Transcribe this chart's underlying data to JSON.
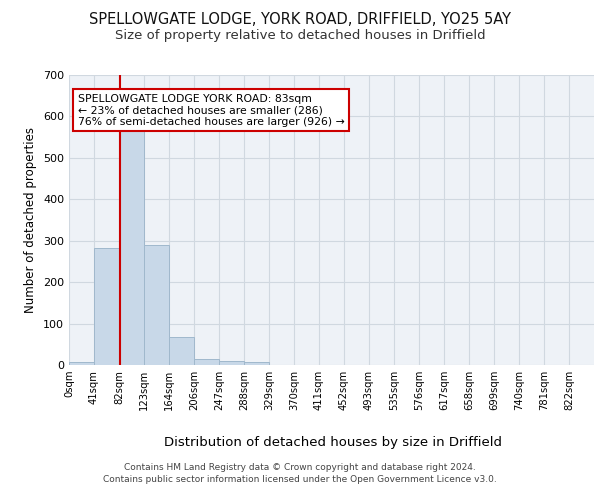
{
  "title1": "SPELLOWGATE LODGE, YORK ROAD, DRIFFIELD, YO25 5AY",
  "title2": "Size of property relative to detached houses in Driffield",
  "xlabel": "Distribution of detached houses by size in Driffield",
  "ylabel": "Number of detached properties",
  "footer1": "Contains HM Land Registry data © Crown copyright and database right 2024.",
  "footer2": "Contains public sector information licensed under the Open Government Licence v3.0.",
  "bin_labels": [
    "0sqm",
    "41sqm",
    "82sqm",
    "123sqm",
    "164sqm",
    "206sqm",
    "247sqm",
    "288sqm",
    "329sqm",
    "370sqm",
    "411sqm",
    "452sqm",
    "493sqm",
    "535sqm",
    "576sqm",
    "617sqm",
    "658sqm",
    "699sqm",
    "740sqm",
    "781sqm",
    "822sqm"
  ],
  "bar_values": [
    8,
    283,
    565,
    290,
    68,
    15,
    10,
    8,
    0,
    0,
    0,
    0,
    0,
    0,
    0,
    0,
    0,
    0,
    0,
    0,
    0
  ],
  "bar_color": "#c8d8e8",
  "bar_edgecolor": "#a0b8cc",
  "vline_color": "#cc0000",
  "annotation_text": "SPELLOWGATE LODGE YORK ROAD: 83sqm\n← 23% of detached houses are smaller (286)\n76% of semi-detached houses are larger (926) →",
  "annotation_box_edgecolor": "#cc0000",
  "ylim": [
    0,
    700
  ],
  "yticks": [
    0,
    100,
    200,
    300,
    400,
    500,
    600,
    700
  ],
  "grid_color": "#d0d8e0",
  "background_color": "#eef2f7",
  "title1_fontsize": 10.5,
  "title2_fontsize": 9.5,
  "xlabel_fontsize": 9.5,
  "ylabel_fontsize": 8.5,
  "ann_fontsize": 7.8,
  "footer_fontsize": 6.5
}
